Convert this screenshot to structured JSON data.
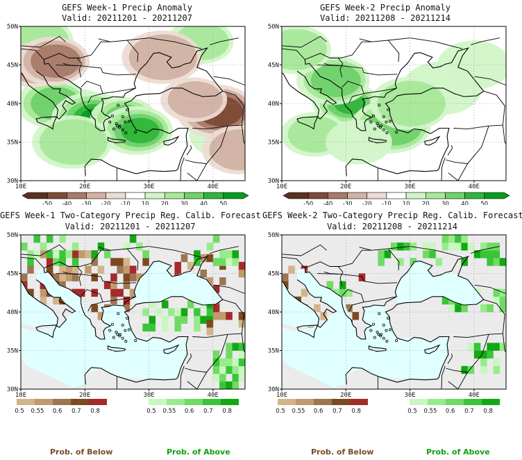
{
  "chart_data": [
    {
      "type": "heatmap",
      "title": "GEFS Week-1 Precip Anomaly",
      "subtitle": "Valid: 20211201 - 20211207",
      "x_ticks": [
        "10E",
        "20E",
        "30E",
        "40E"
      ],
      "y_ticks": [
        "30N",
        "35N",
        "40N",
        "45N",
        "50N"
      ],
      "xlim": [
        10,
        45
      ],
      "ylim": [
        30,
        50
      ],
      "colorbar": {
        "labels": [
          "-50",
          "-40",
          "-30",
          "-20",
          "-10",
          "10",
          "20",
          "30",
          "40",
          "50"
        ],
        "colors": [
          "#5a3020",
          "#7d4a35",
          "#a87a68",
          "#d2b2a4",
          "#ecdcd3",
          "#ffffff",
          "#d2f5c8",
          "#a8e89a",
          "#6fd16a",
          "#2fb63a",
          "#079a1f"
        ]
      },
      "anomalies": [
        {
          "lon": 19,
          "lat": 39,
          "val": 40
        },
        {
          "lon": 15,
          "lat": 40,
          "val": 30
        },
        {
          "lon": 21,
          "lat": 38,
          "val": 45
        },
        {
          "lon": 26,
          "lat": 38,
          "val": 40
        },
        {
          "lon": 28,
          "lat": 36.5,
          "val": 35
        },
        {
          "lon": 12,
          "lat": 48,
          "val": 20
        },
        {
          "lon": 38,
          "lat": 48,
          "val": 15
        },
        {
          "lon": 42,
          "lat": 36,
          "val": 10
        },
        {
          "lon": 18,
          "lat": 35,
          "val": 20
        },
        {
          "lon": 12,
          "lat": 45,
          "val": -40
        },
        {
          "lon": 15,
          "lat": 45.5,
          "val": -30
        },
        {
          "lon": 40.5,
          "lat": 39,
          "val": -40
        },
        {
          "lon": 37,
          "lat": 40.5,
          "val": -20
        },
        {
          "lon": 44,
          "lat": 34,
          "val": -20
        },
        {
          "lon": 32,
          "lat": 46,
          "val": -15
        }
      ]
    },
    {
      "type": "heatmap",
      "title": "GEFS Week-2 Precip Anomaly",
      "subtitle": "Valid: 20211208 - 20211214",
      "x_ticks": [
        "10E",
        "20E",
        "30E",
        "40E"
      ],
      "y_ticks": [
        "30N",
        "35N",
        "40N",
        "45N",
        "50N"
      ],
      "xlim": [
        10,
        45
      ],
      "ylim": [
        30,
        50
      ],
      "colorbar": {
        "labels": [
          "-50",
          "-40",
          "-30",
          "-20",
          "-10",
          "10",
          "20",
          "30",
          "40",
          "50"
        ],
        "colors": [
          "#5a3020",
          "#7d4a35",
          "#a87a68",
          "#d2b2a4",
          "#ecdcd3",
          "#ffffff",
          "#d2f5c8",
          "#a8e89a",
          "#6fd16a",
          "#2fb63a",
          "#079a1f"
        ]
      },
      "anomalies": [
        {
          "lon": 20,
          "lat": 40,
          "val": 35
        },
        {
          "lon": 18,
          "lat": 43,
          "val": 25
        },
        {
          "lon": 27,
          "lat": 37,
          "val": 30
        },
        {
          "lon": 15,
          "lat": 36,
          "val": 15
        },
        {
          "lon": 12,
          "lat": 47,
          "val": 20
        },
        {
          "lon": 35,
          "lat": 42,
          "val": 12
        },
        {
          "lon": 22,
          "lat": 35,
          "val": 12
        },
        {
          "lon": 40,
          "lat": 45,
          "val": 10
        },
        {
          "lon": 30,
          "lat": 40,
          "val": 15
        }
      ]
    },
    {
      "type": "heatmap",
      "title": "GEFS Week-1 Two-Category Precip Reg. Calib. Forecast",
      "subtitle": "Valid: 20211201 - 20211207",
      "x_ticks": [
        "10E",
        "20E",
        "30E",
        "40E"
      ],
      "y_ticks": [
        "30N",
        "35N",
        "40N",
        "45N",
        "50N"
      ],
      "xlim": [
        10,
        45
      ],
      "ylim": [
        30,
        50
      ],
      "below_colorbar": {
        "labels": [
          "0.5",
          "0.55",
          "0.6",
          "0.7",
          "0.8"
        ],
        "colors": [
          "#d2b48c",
          "#c19a6b",
          "#9c7653",
          "#7d4a20",
          "#a52a2a"
        ]
      },
      "above_colorbar": {
        "labels": [
          "0.5",
          "0.55",
          "0.6",
          "0.7",
          "0.8"
        ],
        "colors": [
          "#c8f7c0",
          "#98eb8c",
          "#6fdb63",
          "#39c539",
          "#13a813"
        ]
      },
      "below_label": "Prob. of Below",
      "above_label": "Prob. of Above"
    },
    {
      "type": "heatmap",
      "title": "GEFS Week-2 Two-Category Precip Reg. Calib. Forecast",
      "subtitle": "Valid: 20211208 - 20211214",
      "x_ticks": [
        "10E",
        "20E",
        "30E",
        "40E"
      ],
      "y_ticks": [
        "30N",
        "35N",
        "40N",
        "45N",
        "50N"
      ],
      "xlim": [
        10,
        45
      ],
      "ylim": [
        30,
        50
      ],
      "below_colorbar": {
        "labels": [
          "0.5",
          "0.55",
          "0.6",
          "0.7",
          "0.8"
        ],
        "colors": [
          "#d2b48c",
          "#c19a6b",
          "#9c7653",
          "#7d4a20",
          "#a52a2a"
        ]
      },
      "above_colorbar": {
        "labels": [
          "0.5",
          "0.55",
          "0.6",
          "0.7",
          "0.8"
        ],
        "colors": [
          "#c8f7c0",
          "#98eb8c",
          "#6fdb63",
          "#39c539",
          "#13a813"
        ]
      },
      "below_label": "Prob. of Below",
      "above_label": "Prob. of Above"
    }
  ],
  "colors": {
    "neutral": "#ebebeb",
    "sea": "#e0ffff",
    "coast": "#000000"
  }
}
